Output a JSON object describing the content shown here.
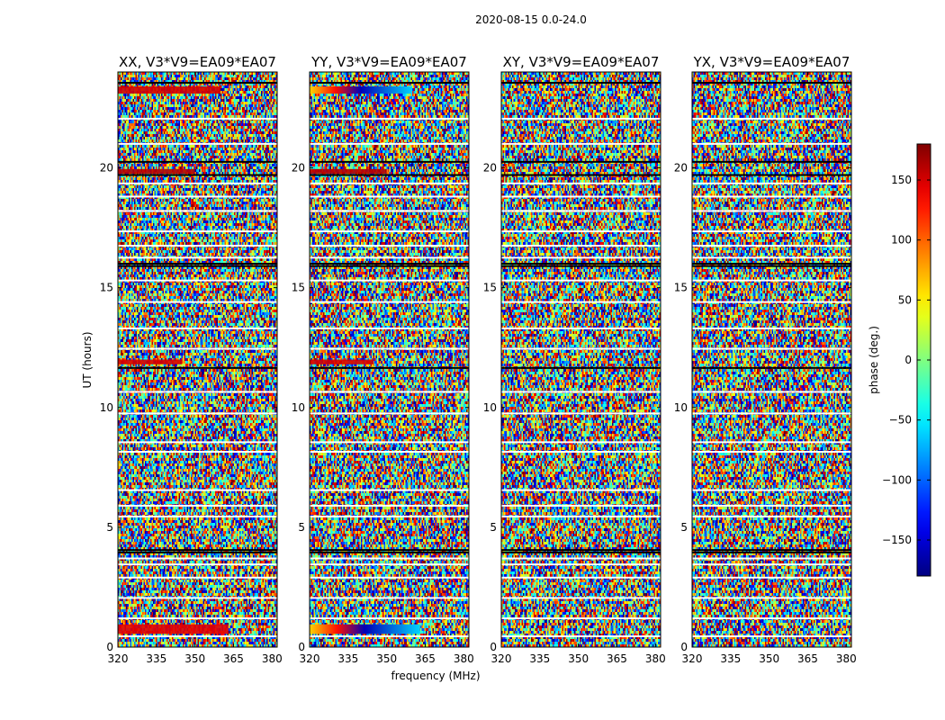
{
  "chart_data": {
    "type": "heatmap",
    "suptitle": "2020-08-15 0.0-24.0",
    "xlabel": "frequency (MHz)",
    "ylabel": "UT (hours)",
    "xlim": [
      320,
      382
    ],
    "ylim": [
      0,
      24
    ],
    "xticks": [
      320,
      335,
      350,
      365,
      380
    ],
    "yticks": [
      0,
      5,
      10,
      15,
      20
    ],
    "panels": [
      {
        "title": "XX, V3*V9=EA09*EA07",
        "bands": [
          {
            "t0": 0.55,
            "t1": 0.95,
            "f0": 320,
            "f1": 363,
            "phase": 145
          },
          {
            "t0": 23.1,
            "t1": 23.4,
            "f0": 320,
            "f1": 360,
            "phase": 150
          },
          {
            "t0": 19.75,
            "t1": 19.95,
            "f0": 320,
            "f1": 350,
            "phase": 160
          },
          {
            "t0": 11.8,
            "t1": 12.0,
            "f0": 320,
            "f1": 345,
            "phase": 150
          }
        ]
      },
      {
        "title": "YY, V3*V9=EA09*EA07",
        "bands": [
          {
            "t0": 0.55,
            "t1": 0.95,
            "f0": 320,
            "f1": 363,
            "phase": -60
          },
          {
            "t0": 23.1,
            "t1": 23.4,
            "f0": 320,
            "f1": 360,
            "phase": -60
          },
          {
            "t0": 19.75,
            "t1": 19.95,
            "f0": 320,
            "f1": 350,
            "phase": 160
          },
          {
            "t0": 11.8,
            "t1": 12.0,
            "f0": 320,
            "f1": 345,
            "phase": 150
          }
        ]
      },
      {
        "title": "XY, V3*V9=EA09*EA07",
        "bands": []
      },
      {
        "title": "YX, V3*V9=EA09*EA07",
        "bands": []
      }
    ],
    "gaps_hours": [
      0.45,
      1.2,
      2.05,
      2.9,
      3.45,
      3.7,
      5.45,
      5.9,
      6.55,
      8.15,
      8.55,
      9.75,
      10.65,
      12.45,
      13.3,
      14.4,
      15.3,
      16.25,
      16.75,
      17.35,
      18.2,
      18.8,
      19.35,
      21.0,
      22.05
    ],
    "flagged_hours": [
      3.95,
      4.05,
      11.65,
      15.9,
      16.0,
      19.7,
      20.25,
      23.55
    ],
    "colorbar": {
      "label": "phase (deg.)",
      "range": [
        -180,
        180
      ],
      "ticks": [
        150,
        100,
        50,
        0,
        -50,
        -100,
        -150
      ]
    }
  }
}
